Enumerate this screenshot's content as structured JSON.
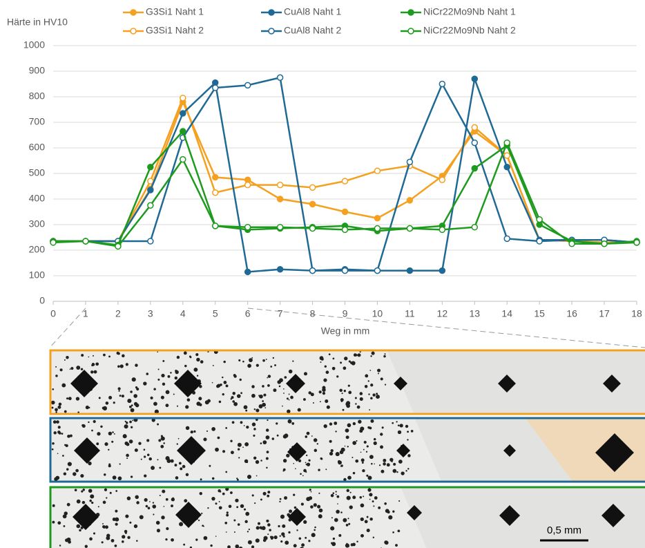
{
  "chart_data": {
    "type": "line",
    "y_label": "Härte in HV10",
    "x_label": "Weg in mm",
    "x": [
      0,
      1,
      2,
      3,
      4,
      5,
      6,
      7,
      8,
      9,
      10,
      11,
      12,
      13,
      14,
      15,
      16,
      17,
      18
    ],
    "xlim": [
      0,
      18
    ],
    "xticks": [
      0,
      1,
      2,
      3,
      4,
      5,
      6,
      7,
      8,
      9,
      10,
      11,
      12,
      13,
      14,
      15,
      16,
      17,
      18
    ],
    "ylim": [
      0,
      1000
    ],
    "yticks": [
      0,
      100,
      200,
      300,
      400,
      500,
      600,
      700,
      800,
      900,
      1000
    ],
    "grid": true,
    "legend": "top",
    "series": [
      {
        "name": "G3Si1 Naht 1",
        "color": "#f5a01f",
        "marker": "filled",
        "values": [
          235,
          235,
          235,
          440,
          780,
          485,
          475,
          400,
          380,
          350,
          325,
          395,
          490,
          665,
          570,
          240,
          235,
          230,
          230
        ]
      },
      {
        "name": "G3Si1 Naht 2",
        "color": "#f5a01f",
        "marker": "open",
        "values": [
          235,
          235,
          235,
          470,
          795,
          425,
          455,
          455,
          445,
          470,
          510,
          530,
          475,
          680,
          570,
          240,
          235,
          230,
          230
        ]
      },
      {
        "name": "CuAl8 Naht 1",
        "color": "#1f6a94",
        "marker": "filled",
        "values": [
          235,
          235,
          235,
          435,
          735,
          855,
          115,
          125,
          120,
          125,
          120,
          120,
          120,
          870,
          525,
          240,
          240,
          240,
          230
        ]
      },
      {
        "name": "CuAl8 Naht 2",
        "color": "#1f6a94",
        "marker": "open",
        "values": [
          235,
          235,
          235,
          235,
          640,
          835,
          845,
          875,
          120,
          120,
          120,
          545,
          850,
          620,
          245,
          235,
          240,
          240,
          230
        ]
      },
      {
        "name": "NiCr22Mo9Nb Naht 1",
        "color": "#1e9a1e",
        "marker": "filled",
        "values": [
          235,
          235,
          220,
          525,
          665,
          295,
          280,
          285,
          290,
          295,
          275,
          285,
          295,
          520,
          610,
          300,
          235,
          225,
          235
        ]
      },
      {
        "name": "NiCr22Mo9Nb Naht 2",
        "color": "#1e9a1e",
        "marker": "open",
        "values": [
          230,
          235,
          215,
          375,
          555,
          295,
          290,
          290,
          285,
          280,
          285,
          285,
          280,
          290,
          620,
          320,
          225,
          225,
          230
        ]
      }
    ]
  },
  "image": {
    "scale_bar": "0,5 mm"
  }
}
